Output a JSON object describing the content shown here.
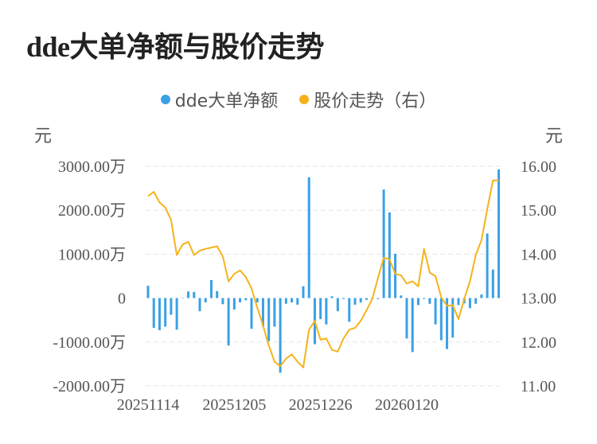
{
  "chart_data": {
    "type": "bar+line",
    "title": "dde大单净额与股价走势",
    "legend": [
      "dde大单净额",
      "股价走势（右）"
    ],
    "y_left": {
      "unit": "元",
      "ticks": [
        "3000.00万",
        "2000.00万",
        "1000.00万",
        "0",
        "-1000.00万",
        "-2000.00万"
      ],
      "range": [
        -2000,
        3000
      ]
    },
    "y_right": {
      "unit": "元",
      "ticks": [
        "16.00",
        "15.00",
        "14.00",
        "13.00",
        "12.00",
        "11.00"
      ],
      "range": [
        11,
        16
      ]
    },
    "x_ticks": [
      {
        "label": "20251114",
        "index": 0
      },
      {
        "label": "20251205",
        "index": 15
      },
      {
        "label": "20251226",
        "index": 30
      },
      {
        "label": "20260120",
        "index": 45
      }
    ],
    "colors": {
      "bar": "#3ba0e5",
      "line": "#f5b31b",
      "grid": "#e6e6e6"
    },
    "series": [
      {
        "name": "dde大单净额",
        "type": "bar",
        "unit": "万元",
        "values": [
          280,
          -680,
          -730,
          -650,
          -380,
          -720,
          0,
          150,
          140,
          -300,
          -100,
          410,
          160,
          -140,
          -1080,
          -260,
          -100,
          -50,
          -700,
          -100,
          -640,
          -980,
          -650,
          -1700,
          -130,
          -100,
          -150,
          270,
          2750,
          -1050,
          -480,
          -600,
          40,
          -300,
          -20,
          -540,
          -150,
          -100,
          -40,
          -20,
          -20,
          2470,
          1950,
          1010,
          60,
          -920,
          -1230,
          -160,
          -20,
          -130,
          -600,
          -960,
          -1160,
          -900,
          -160,
          -120,
          -230,
          -130,
          80,
          1470,
          650,
          2930
        ]
      },
      {
        "name": "股价走势（右）",
        "type": "line",
        "unit": "元",
        "values": [
          15.32,
          15.42,
          15.18,
          15.06,
          14.78,
          13.98,
          14.22,
          14.28,
          13.98,
          14.08,
          14.12,
          14.15,
          14.18,
          13.95,
          13.38,
          13.55,
          13.63,
          13.48,
          13.22,
          12.78,
          12.38,
          11.92,
          11.55,
          11.45,
          11.62,
          11.72,
          11.55,
          11.42,
          12.28,
          12.48,
          12.05,
          12.08,
          11.82,
          11.78,
          12.08,
          12.28,
          12.32,
          12.48,
          12.72,
          12.98,
          13.46,
          13.92,
          13.88,
          13.55,
          13.52,
          13.33,
          13.38,
          13.27,
          14.12,
          13.58,
          13.5,
          13.02,
          12.82,
          12.84,
          12.52,
          12.98,
          13.38,
          13.98,
          14.32,
          15.02,
          15.68,
          15.68
        ]
      }
    ]
  }
}
